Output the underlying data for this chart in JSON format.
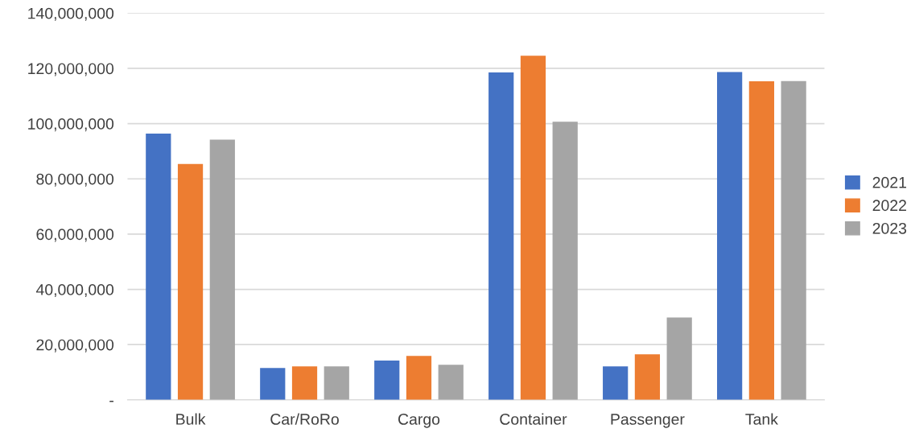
{
  "chart_data": {
    "type": "bar",
    "categories": [
      "Bulk",
      "Car/RoRo",
      "Cargo",
      "Container",
      "Passenger",
      "Tank"
    ],
    "series": [
      {
        "name": "2021",
        "color": "#4472c4",
        "values": [
          96400000,
          11500000,
          14200000,
          118500000,
          12100000,
          118700000
        ]
      },
      {
        "name": "2022",
        "color": "#ed7d31",
        "values": [
          85400000,
          12100000,
          15900000,
          124600000,
          16500000,
          115300000
        ]
      },
      {
        "name": "2023",
        "color": "#a5a5a5",
        "values": [
          94200000,
          12100000,
          12700000,
          100700000,
          29800000,
          115400000
        ]
      }
    ],
    "ylim": [
      0,
      140000000
    ],
    "yticks": [
      {
        "value": 0,
        "label": "-"
      },
      {
        "value": 20000000,
        "label": "20,000,000"
      },
      {
        "value": 40000000,
        "label": "40,000,000"
      },
      {
        "value": 60000000,
        "label": "60,000,000"
      },
      {
        "value": 80000000,
        "label": "80,000,000"
      },
      {
        "value": 100000000,
        "label": "100,000,000"
      },
      {
        "value": 120000000,
        "label": "120,000,000"
      },
      {
        "value": 140000000,
        "label": "140,000,000"
      }
    ],
    "grid": "y",
    "legend": "right"
  }
}
